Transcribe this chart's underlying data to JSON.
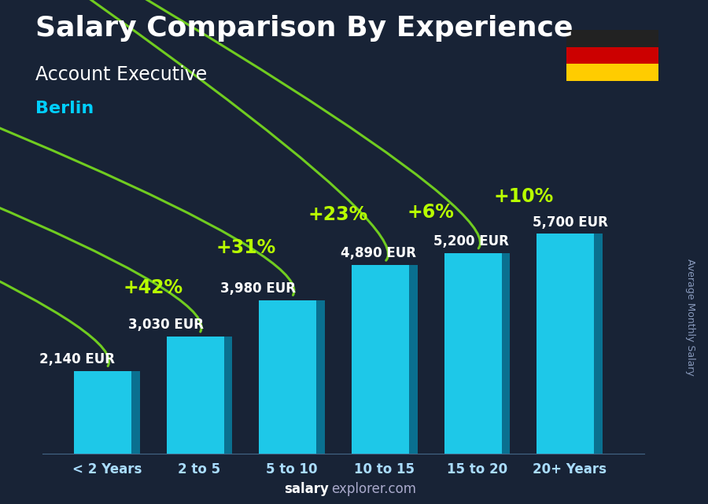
{
  "title": "Salary Comparison By Experience",
  "subtitle": "Account Executive",
  "city": "Berlin",
  "ylabel": "Average Monthly Salary",
  "footer_bold": "salary",
  "footer_regular": "explorer.com",
  "categories": [
    "< 2 Years",
    "2 to 5",
    "5 to 10",
    "10 to 15",
    "15 to 20",
    "20+ Years"
  ],
  "values": [
    2140,
    3030,
    3980,
    4890,
    5200,
    5700
  ],
  "value_labels": [
    "2,140 EUR",
    "3,030 EUR",
    "3,980 EUR",
    "4,890 EUR",
    "5,200 EUR",
    "5,700 EUR"
  ],
  "pct_labels": [
    "+42%",
    "+31%",
    "+23%",
    "+6%",
    "+10%"
  ],
  "bar_face_color": "#1ec8e8",
  "bar_side_color": "#0a7090",
  "bar_top_color": "#12a0c0",
  "bg_overlay_color": "#10203a",
  "bg_overlay_alpha": 0.55,
  "title_color": "#ffffff",
  "subtitle_color": "#ffffff",
  "city_color": "#00cfff",
  "value_color": "#ffffff",
  "pct_color": "#b8ff00",
  "arrow_color": "#70cc20",
  "xlabel_color": "#aaddff",
  "footer_color": "#aaaacc",
  "footer_bold_color": "#ffffff",
  "bar_width": 0.62,
  "bar_depth": 0.09,
  "ylim": [
    0,
    6800
  ],
  "flag_black": "#222222",
  "flag_red": "#cc0000",
  "flag_gold": "#ffcc00",
  "title_fontsize": 26,
  "subtitle_fontsize": 17,
  "city_fontsize": 16,
  "value_fontsize": 12,
  "pct_fontsize": 17,
  "xlabel_fontsize": 12,
  "footer_fontsize": 12,
  "ylabel_fontsize": 9
}
